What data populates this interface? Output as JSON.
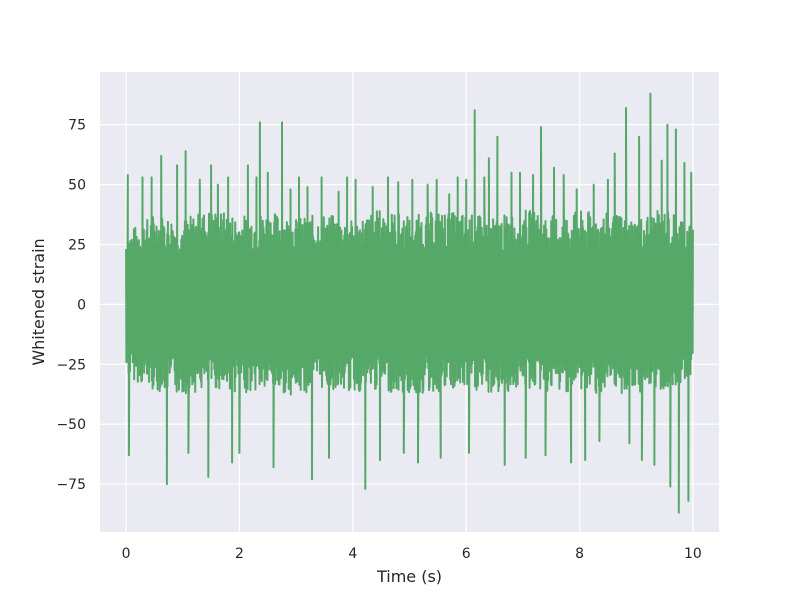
{
  "chart_data": {
    "type": "line",
    "title": "",
    "xlabel": "Time (s)",
    "ylabel": "Whitened strain",
    "xlim": [
      -0.46,
      10.46
    ],
    "ylim": [
      -95,
      97
    ],
    "x_ticks": [
      0,
      2,
      4,
      6,
      8,
      10
    ],
    "x_tick_labels": [
      "0",
      "2",
      "4",
      "6",
      "8",
      "10"
    ],
    "y_ticks": [
      -75,
      -50,
      -25,
      0,
      25,
      50,
      75
    ],
    "y_tick_labels": [
      "−75",
      "−50",
      "−25",
      "0",
      "25",
      "50",
      "75"
    ],
    "grid": true,
    "background_color": "#eaeaf2",
    "grid_color": "#ffffff",
    "series": [
      {
        "color": "#55a868",
        "envelope": {
          "x": [
            0.0,
            0.5,
            1.0,
            1.5,
            2.0,
            2.5,
            3.0,
            3.5,
            4.0,
            4.5,
            5.0,
            5.5,
            6.0,
            6.5,
            7.0,
            7.5,
            8.0,
            8.5,
            9.0,
            9.5,
            10.0
          ],
          "upper": [
            30,
            38,
            36,
            40,
            37,
            39,
            36,
            38,
            35,
            40,
            37,
            39,
            38,
            36,
            40,
            37,
            39,
            38,
            36,
            40,
            35
          ],
          "lower": [
            -30,
            -36,
            -38,
            -35,
            -37,
            -36,
            -38,
            -35,
            -37,
            -36,
            -38,
            -37,
            -36,
            -38,
            -35,
            -37,
            -36,
            -38,
            -37,
            -36,
            -30
          ]
        },
        "peaks": [
          [
            0.03,
            54
          ],
          [
            0.05,
            -63
          ],
          [
            0.29,
            53
          ],
          [
            0.45,
            53
          ],
          [
            0.62,
            62
          ],
          [
            0.72,
            -75
          ],
          [
            0.9,
            58
          ],
          [
            1.05,
            64
          ],
          [
            1.1,
            -62
          ],
          [
            1.3,
            52
          ],
          [
            1.45,
            -72
          ],
          [
            1.5,
            58
          ],
          [
            1.62,
            50
          ],
          [
            1.8,
            53
          ],
          [
            1.87,
            -66
          ],
          [
            2.0,
            -62
          ],
          [
            2.15,
            58
          ],
          [
            2.3,
            53
          ],
          [
            2.36,
            76
          ],
          [
            2.5,
            55
          ],
          [
            2.6,
            -68
          ],
          [
            2.75,
            76
          ],
          [
            2.9,
            48
          ],
          [
            3.05,
            53
          ],
          [
            3.2,
            49
          ],
          [
            3.28,
            -73
          ],
          [
            3.45,
            53
          ],
          [
            3.58,
            -64
          ],
          [
            3.75,
            47
          ],
          [
            3.9,
            53
          ],
          [
            4.05,
            52
          ],
          [
            4.22,
            -77
          ],
          [
            4.35,
            49
          ],
          [
            4.48,
            -65
          ],
          [
            4.62,
            53
          ],
          [
            4.8,
            51
          ],
          [
            4.9,
            -62
          ],
          [
            5.05,
            52
          ],
          [
            5.15,
            -66
          ],
          [
            5.32,
            50
          ],
          [
            5.48,
            52
          ],
          [
            5.55,
            -64
          ],
          [
            5.7,
            46
          ],
          [
            5.85,
            53
          ],
          [
            6.0,
            52
          ],
          [
            6.05,
            -62
          ],
          [
            6.15,
            81
          ],
          [
            6.32,
            53
          ],
          [
            6.4,
            61
          ],
          [
            6.55,
            70
          ],
          [
            6.68,
            -67
          ],
          [
            6.8,
            55
          ],
          [
            6.95,
            55
          ],
          [
            7.05,
            -64
          ],
          [
            7.18,
            54
          ],
          [
            7.32,
            74
          ],
          [
            7.4,
            -63
          ],
          [
            7.55,
            57
          ],
          [
            7.72,
            54
          ],
          [
            7.85,
            -66
          ],
          [
            7.95,
            48
          ],
          [
            8.1,
            -65
          ],
          [
            8.25,
            50
          ],
          [
            8.35,
            -57
          ],
          [
            8.5,
            52
          ],
          [
            8.62,
            63
          ],
          [
            8.82,
            82
          ],
          [
            8.88,
            -58
          ],
          [
            9.05,
            70
          ],
          [
            9.1,
            -65
          ],
          [
            9.25,
            88
          ],
          [
            9.32,
            -67
          ],
          [
            9.45,
            60
          ],
          [
            9.55,
            75
          ],
          [
            9.6,
            -76
          ],
          [
            9.7,
            73
          ],
          [
            9.75,
            -87
          ],
          [
            9.85,
            59
          ],
          [
            9.92,
            -82
          ],
          [
            9.97,
            55
          ]
        ]
      }
    ]
  }
}
